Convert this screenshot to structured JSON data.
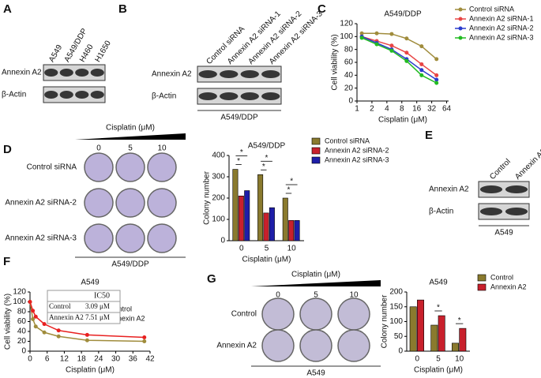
{
  "panel_labels": [
    "A",
    "B",
    "C",
    "D",
    "E",
    "F",
    "G"
  ],
  "blots": [
    {
      "columns": [
        "A549",
        "A549/DDP",
        "H460",
        "H1650"
      ],
      "rows": [
        "Annexin A2",
        "β-Actin"
      ]
    },
    {
      "columns": [
        "Control siRNA",
        "Annexin A2 siRNA-1",
        "Annexin A2 siRNA-2",
        "Annexin A2 siRNA-3"
      ],
      "rows": [
        "Annexin A2",
        "β-Actin"
      ],
      "caption": "A549/DDP"
    },
    {
      "columns": [
        "Control",
        "Annexin A2"
      ],
      "rows": [
        "Annexin A2",
        "β-Actin"
      ],
      "caption": "A549"
    }
  ],
  "colony": [
    {
      "title": "Cisplatin (μM)",
      "doses": [
        "0",
        "5",
        "10"
      ],
      "rows": [
        "Control siRNA",
        "Annexin A2 siRNA-2",
        "Annexin A2 siRNA-3"
      ],
      "caption": "A549/DDP"
    },
    {
      "title": "Cisplatin (μM)",
      "doses": [
        "0",
        "5",
        "10"
      ],
      "rows": [
        "Control",
        "Annexin A2"
      ],
      "caption": "A549"
    }
  ],
  "chart_data": [
    {
      "type": "line",
      "title": "A549/DDP",
      "x_label": "Cisplatin (μM)",
      "y_label": "Cell viability (%)",
      "xscale": "log",
      "x": [
        1.25,
        2.5,
        5,
        10,
        20,
        40
      ],
      "xlim": [
        1,
        70
      ],
      "xticks": [
        1,
        2,
        4,
        8,
        16,
        32,
        64
      ],
      "ylim": [
        0,
        120
      ],
      "yticks": [
        0,
        20,
        40,
        60,
        80,
        100,
        120
      ],
      "legend": "outside-right",
      "series": [
        {
          "name": "Control siRNA",
          "color": "#a08c3c",
          "values": [
            105,
            105,
            104,
            97,
            85,
            65
          ]
        },
        {
          "name": "Annexin A2 siRNA-1",
          "color": "#e84545",
          "values": [
            100,
            93,
            86,
            75,
            57,
            40
          ]
        },
        {
          "name": "Annexin A2 siRNA-2",
          "color": "#2a3ccc",
          "values": [
            100,
            90,
            80,
            65,
            48,
            33
          ]
        },
        {
          "name": "Annexin A2 siRNA-3",
          "color": "#22bb22",
          "values": [
            98,
            88,
            78,
            62,
            40,
            28
          ]
        }
      ]
    },
    {
      "type": "bar",
      "title": "A549/DDP",
      "x_label": "Cisplatin (μM)",
      "y_label": "Colony number",
      "categories": [
        "0",
        "5",
        "10"
      ],
      "ylim": [
        0,
        400
      ],
      "yticks": [
        0,
        100,
        200,
        300,
        400
      ],
      "legend": "outside-right",
      "series": [
        {
          "name": "Control siRNA",
          "color": "#8a7a2e",
          "values": [
            335,
            310,
            200
          ]
        },
        {
          "name": "Annexin A2 siRNA-2",
          "color": "#c8202c",
          "values": [
            210,
            130,
            95
          ]
        },
        {
          "name": "Annexin A2 siRNA-3",
          "color": "#1e1ea8",
          "values": [
            235,
            155,
            95
          ]
        }
      ],
      "significance": [
        [
          "*",
          "*"
        ],
        [
          "*",
          "*"
        ],
        [
          "*",
          "*"
        ]
      ]
    },
    {
      "type": "line",
      "title": "A549",
      "x_label": "Cisplatin (μM)",
      "y_label": "Cell viability (%)",
      "x": [
        0,
        1,
        2,
        5,
        10,
        20,
        40
      ],
      "xlim": [
        0,
        42
      ],
      "xticks": [
        0,
        6,
        12,
        18,
        24,
        30,
        36,
        42
      ],
      "ylim": [
        0,
        120
      ],
      "yticks": [
        0,
        20,
        40,
        60,
        80,
        100,
        120
      ],
      "legend": "inside-right",
      "series": [
        {
          "name": "Control",
          "color": "#a08c3c",
          "values": [
            100,
            65,
            50,
            38,
            30,
            22,
            20
          ]
        },
        {
          "name": "Annexin A2",
          "color": "#e82020",
          "values": [
            100,
            82,
            70,
            55,
            42,
            33,
            28
          ]
        }
      ],
      "inset_table": {
        "header": "IC50",
        "rows": [
          [
            "Control",
            "3.09 μM"
          ],
          [
            "Annexin A2",
            "7.51 μM"
          ]
        ]
      }
    },
    {
      "type": "bar",
      "title": "A549",
      "x_label": "Cisplatin (μM)",
      "y_label": "Colony number",
      "categories": [
        "0",
        "5",
        "10"
      ],
      "ylim": [
        0,
        200
      ],
      "yticks": [
        0,
        50,
        100,
        150,
        200
      ],
      "legend": "outside-right",
      "series": [
        {
          "name": "Control",
          "color": "#8a7a2e",
          "values": [
            150,
            88,
            27
          ]
        },
        {
          "name": "Annexin A2",
          "color": "#c8202c",
          "values": [
            173,
            120,
            77
          ]
        }
      ],
      "significance": [
        null,
        [
          "*"
        ],
        [
          "*"
        ]
      ]
    }
  ]
}
